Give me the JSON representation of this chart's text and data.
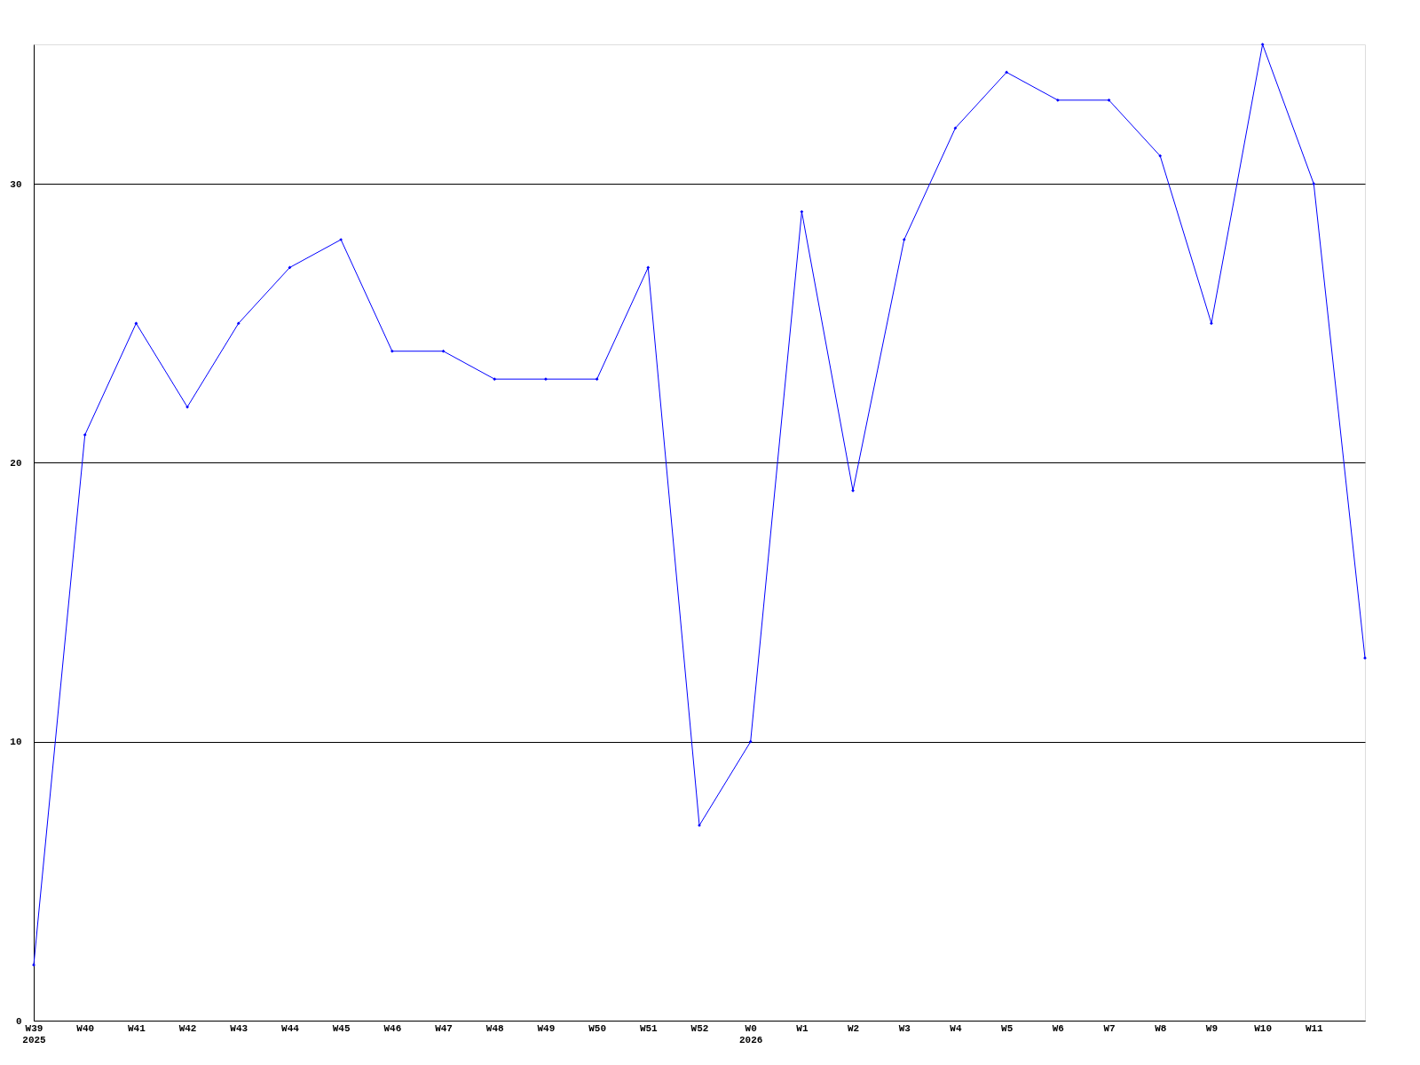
{
  "chart_data": {
    "type": "line",
    "categories": [
      "W39\n2025",
      "W40",
      "W41",
      "W42",
      "W43",
      "W44",
      "W45",
      "W46",
      "W47",
      "W48",
      "W49",
      "W50",
      "W51",
      "W52",
      "W0\n2026",
      "W1",
      "W2",
      "W3",
      "W4",
      "W5",
      "W6",
      "W7",
      "W8",
      "W9",
      "W10",
      "W11",
      null
    ],
    "series": [
      {
        "color": "#0000ff",
        "values": [
          2,
          21,
          25,
          22,
          25,
          27,
          28,
          24,
          24,
          23,
          23,
          23,
          27,
          7,
          10,
          29,
          19,
          28,
          32,
          34,
          33,
          33,
          31,
          25,
          35,
          30,
          13
        ]
      }
    ],
    "ylim": [
      0,
      35
    ],
    "yticks": [
      0,
      10,
      20,
      30
    ],
    "grid": "y",
    "marker": "diamond",
    "line_style": "solid"
  }
}
